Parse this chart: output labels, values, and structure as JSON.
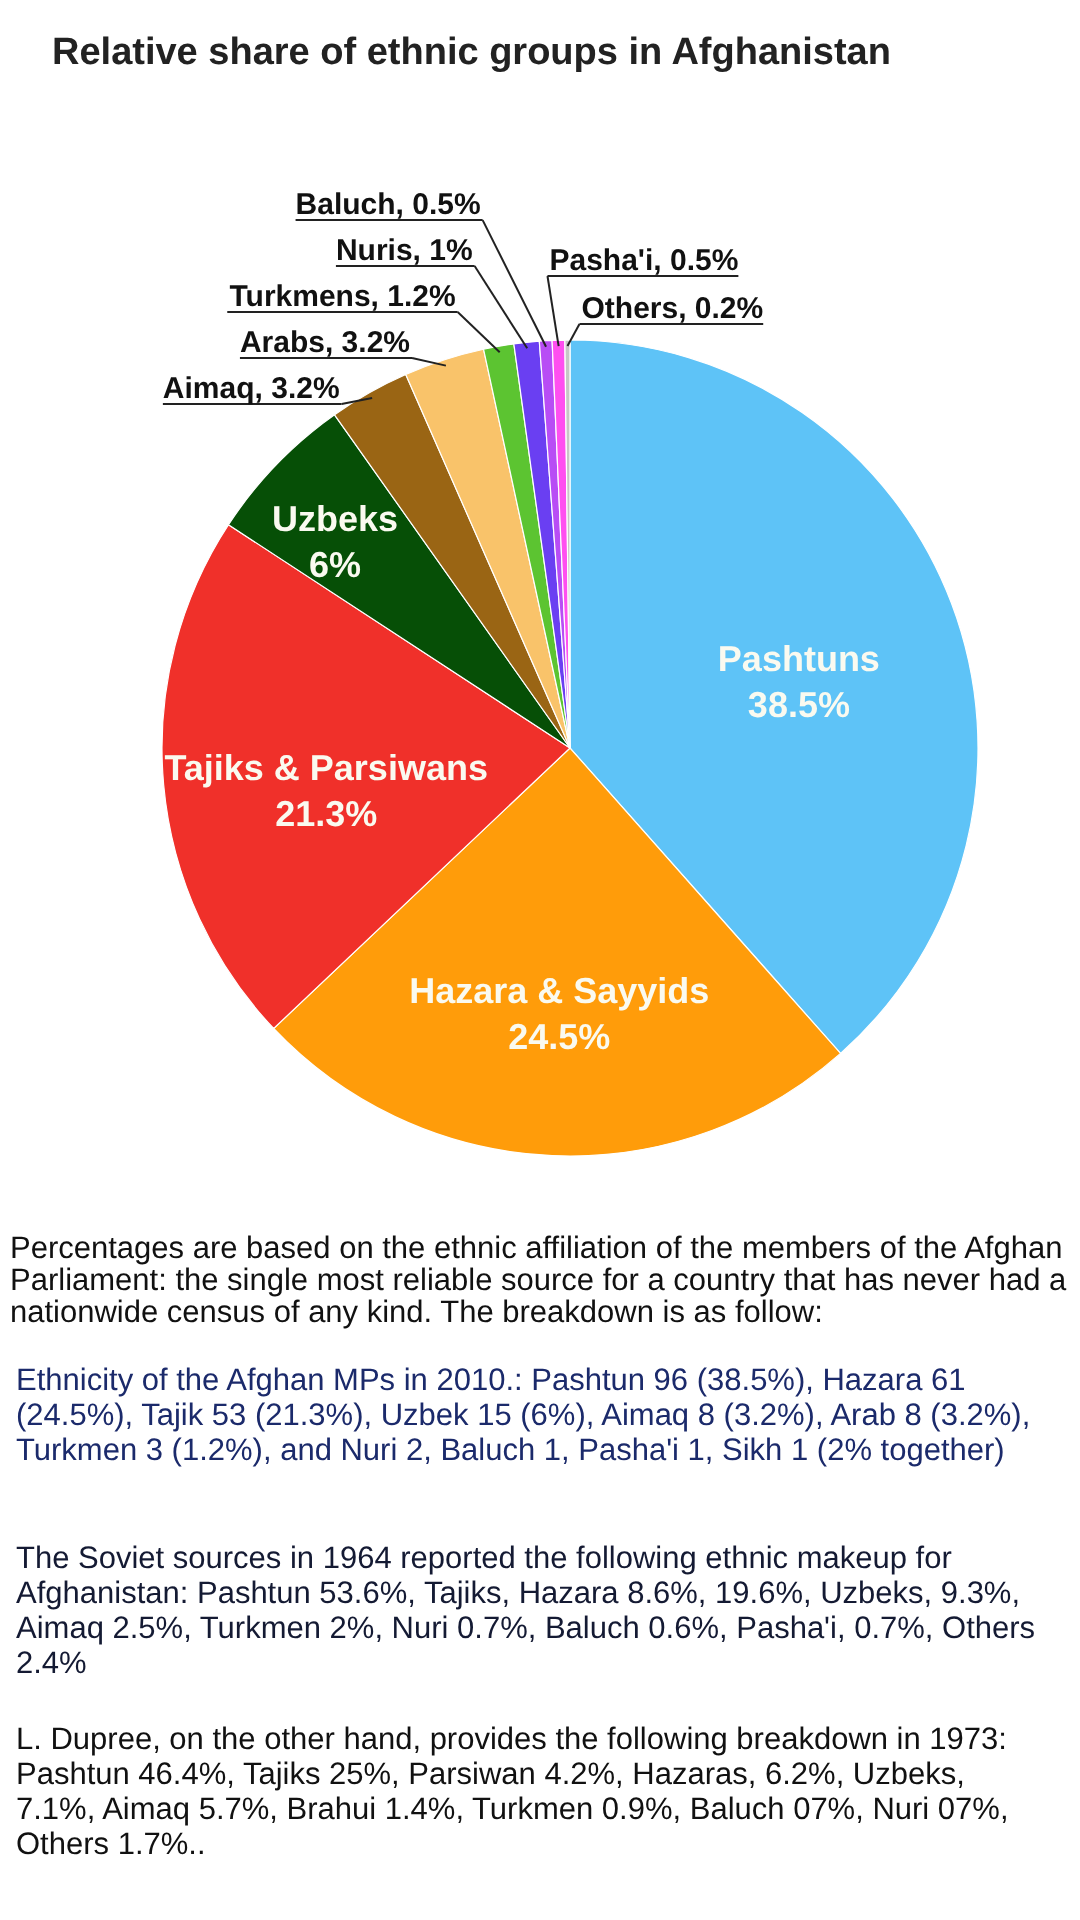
{
  "chart_data": {
    "type": "pie",
    "title": "Relative share of ethnic groups in Afghanistan",
    "categories": [
      "Pashtuns",
      "Hazara & Sayyids",
      "Tajiks & Parsiwans",
      "Uzbeks",
      "Aimaq",
      "Arabs",
      "Turkmens",
      "Nuris",
      "Baluch",
      "Pasha'i",
      "Others"
    ],
    "values": [
      38.5,
      24.5,
      21.3,
      6,
      3.2,
      3.2,
      1.2,
      1,
      0.5,
      0.5,
      0.2
    ],
    "value_labels": [
      "38.5%",
      "24.5%",
      "21.3%",
      "6%",
      "3.2%",
      "3.2%",
      "1.2%",
      "1%",
      "0.5%",
      "0.5%",
      "0.2%"
    ],
    "colors": [
      "#5ec3f7",
      "#ff9c0a",
      "#f0302a",
      "#064f06",
      "#9a6514",
      "#f9c36a",
      "#5cc431",
      "#6a3ff2",
      "#b84df5",
      "#ff4ff0",
      "#c6c6c6"
    ],
    "annotations": [
      "Percentages are based on the ethnic affiliation of the members of the Afghan Parliament: the single most reliable source for a country that has never had a nationwide census of any kind. The breakdown is as follow:",
      "Ethnicity of the Afghan MPs in 2010.: Pashtun 96 (38.5%), Hazara 61 (24.5%), Tajik 53 (21.3%), Uzbek 15 (6%), Aimaq 8 (3.2%), Arab 8 (3.2%), Turkmen 3 (1.2%), and Nuri 2, Baluch 1, Pasha'i 1, Sikh 1 (2% together)",
      "The Soviet sources in 1964 reported the following ethnic makeup for Afghanistan: Pashtun 53.6%, Tajiks, Hazara 8.6%, 19.6%, Uzbeks, 9.3%, Aimaq 2.5%, Turkmen 2%, Nuri 0.7%, Baluch 0.6%, Pasha'i, 0.7%, Others 2.4%",
      "L. Dupree, on the other hand, provides the following breakdown in 1973: Pashtun 46.4%, Tajiks  25%, Parsiwan 4.2%, Hazaras, 6.2%, Uzbeks, 7.1%, Aimaq 5.7%, Brahui 1.4%, Turkmen 0.9%, Baluch 07%, Nuri 07%, Others 1.7%.."
    ]
  }
}
